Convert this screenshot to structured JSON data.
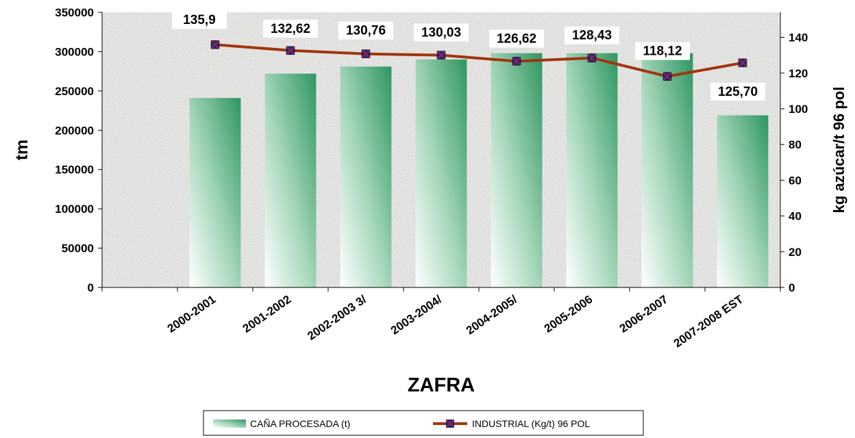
{
  "chart_data": {
    "type": "bar",
    "categories": [
      "2000-2001",
      "2001-2002",
      "2002-2003   3/",
      "2003-2004/",
      "2004-2005/",
      "2005-2006",
      "2006-2007",
      "2007-2008 EST"
    ],
    "series": [
      {
        "name": "CAÑA PROCESADA (t)",
        "type": "bar",
        "axis": "left",
        "values": [
          241000,
          272000,
          281000,
          290000,
          298000,
          298000,
          298000,
          219000
        ]
      },
      {
        "name": "INDUSTRIAL (Kg/t) 96 POL",
        "type": "line",
        "axis": "right",
        "values": [
          135.9,
          132.62,
          130.76,
          130.03,
          126.62,
          128.43,
          118.12,
          125.7
        ],
        "labels": [
          "135,9",
          "132,62",
          "130,76",
          "130,03",
          "126,62",
          "128,43",
          "118,12",
          "125,70"
        ]
      }
    ],
    "xlabel": "ZAFRA",
    "ylabel": "tm",
    "y2label": "kg azúcar/t 96 pol",
    "ylim": [
      0,
      350000
    ],
    "y2lim": [
      0,
      154
    ],
    "yticks": [
      "0",
      "50000",
      "100000",
      "150000",
      "200000",
      "250000",
      "300000",
      "350000"
    ],
    "y2ticks": [
      "0",
      "20",
      "40",
      "60",
      "80",
      "100",
      "120",
      "140"
    ],
    "legend_position": "bottom",
    "grid": false,
    "colors": {
      "bar_dark": "#2e9660",
      "bar_light": "#ffffff",
      "line": "#a0350f",
      "marker_fill": "#1a2a8c",
      "marker_cross": "#c02020"
    }
  }
}
